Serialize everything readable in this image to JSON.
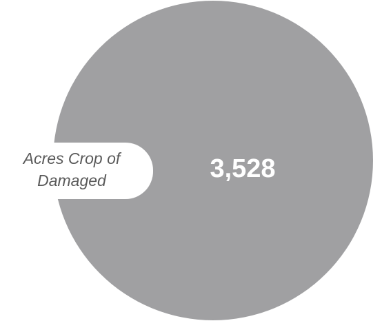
{
  "chart_data": {
    "type": "pie",
    "categories": [
      "Acres Crop of Damaged"
    ],
    "values": [
      3528
    ],
    "value_label": "3,528",
    "label_lines": [
      "Acres Crop of",
      "Damaged"
    ],
    "title": "",
    "colors": {
      "slice": "#a0a0a2",
      "value_text": "#ffffff",
      "label_text": "#5a5a5a"
    }
  }
}
